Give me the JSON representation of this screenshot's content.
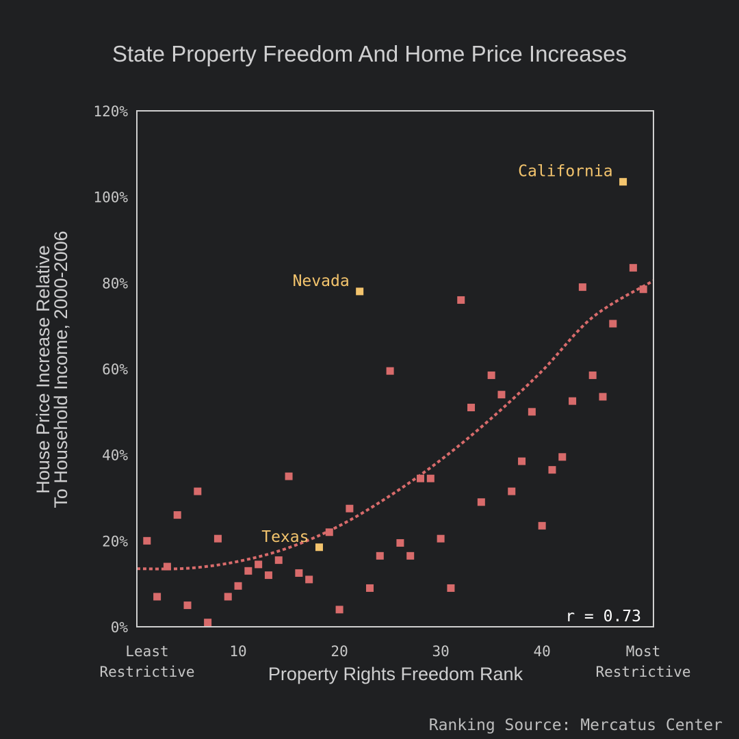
{
  "colors": {
    "background": "#1f2022",
    "text": "#cfcfd0",
    "frame": "#d0d0d0",
    "point": "#d86b6b",
    "highlight": "#f3c46d",
    "trend": "#d86b6b"
  },
  "source": "Ranking Source: Mercatus Center",
  "chart_data": {
    "type": "scatter",
    "title": "State Property Freedom And Home Price Increases",
    "xlabel": "Property Rights Freedom Rank",
    "ylabel_lines": [
      "House Price Increase Relative",
      "To Household Income, 2000-2006"
    ],
    "xlim": [
      0,
      51
    ],
    "ylim": [
      0,
      120
    ],
    "y_ticks": [
      0,
      20,
      40,
      60,
      80,
      100,
      120
    ],
    "y_tick_labels": [
      "0%",
      "20%",
      "40%",
      "60%",
      "80%",
      "100%",
      "120%"
    ],
    "x_ticks": [
      10,
      20,
      30,
      40
    ],
    "x_tick_labels": [
      "10",
      "20",
      "30",
      "40"
    ],
    "x_end_labels": {
      "left": [
        "Least",
        "Restrictive"
      ],
      "right": [
        "Most",
        "Restrictive"
      ]
    },
    "annotation": "r = 0.73",
    "points": [
      [
        1,
        20
      ],
      [
        2,
        7
      ],
      [
        3,
        14
      ],
      [
        4,
        26
      ],
      [
        5,
        5
      ],
      [
        6,
        31.5
      ],
      [
        7,
        1
      ],
      [
        8,
        20.5
      ],
      [
        9,
        7
      ],
      [
        10,
        9.5
      ],
      [
        11,
        13
      ],
      [
        12,
        14.5
      ],
      [
        13,
        12
      ],
      [
        14,
        15.5
      ],
      [
        15,
        35
      ],
      [
        16,
        12.5
      ],
      [
        17,
        11
      ],
      [
        19,
        22
      ],
      [
        20,
        4
      ],
      [
        21,
        27.5
      ],
      [
        23,
        9
      ],
      [
        24,
        16.5
      ],
      [
        25,
        59.5
      ],
      [
        26,
        19.5
      ],
      [
        27,
        16.5
      ],
      [
        28,
        34.5
      ],
      [
        29,
        34.5
      ],
      [
        30,
        20.5
      ],
      [
        31,
        9
      ],
      [
        32,
        76
      ],
      [
        33,
        51
      ],
      [
        34,
        29
      ],
      [
        35,
        58.5
      ],
      [
        36,
        54
      ],
      [
        37,
        31.5
      ],
      [
        38,
        38.5
      ],
      [
        39,
        50
      ],
      [
        40,
        23.5
      ],
      [
        41,
        36.5
      ],
      [
        42,
        39.5
      ],
      [
        43,
        52.5
      ],
      [
        44,
        79
      ],
      [
        45,
        58.5
      ],
      [
        46,
        53.5
      ],
      [
        47,
        70.5
      ],
      [
        49,
        83.5
      ],
      [
        50,
        78.5
      ]
    ],
    "highlighted": [
      {
        "name": "Texas",
        "x": 18,
        "y": 18.5,
        "label_side": "left"
      },
      {
        "name": "Nevada",
        "x": 22,
        "y": 78,
        "label_side": "left"
      },
      {
        "name": "California",
        "x": 48,
        "y": 103.5,
        "label_side": "left"
      }
    ],
    "trend": {
      "style": "dotted",
      "points": [
        [
          0,
          13.5
        ],
        [
          5,
          13.6
        ],
        [
          10,
          15.2
        ],
        [
          15,
          18.4
        ],
        [
          20,
          23.5
        ],
        [
          25,
          30.5
        ],
        [
          30,
          38.8
        ],
        [
          35,
          48.5
        ],
        [
          40,
          59.5
        ],
        [
          45,
          72
        ],
        [
          51,
          80.5
        ]
      ]
    }
  }
}
